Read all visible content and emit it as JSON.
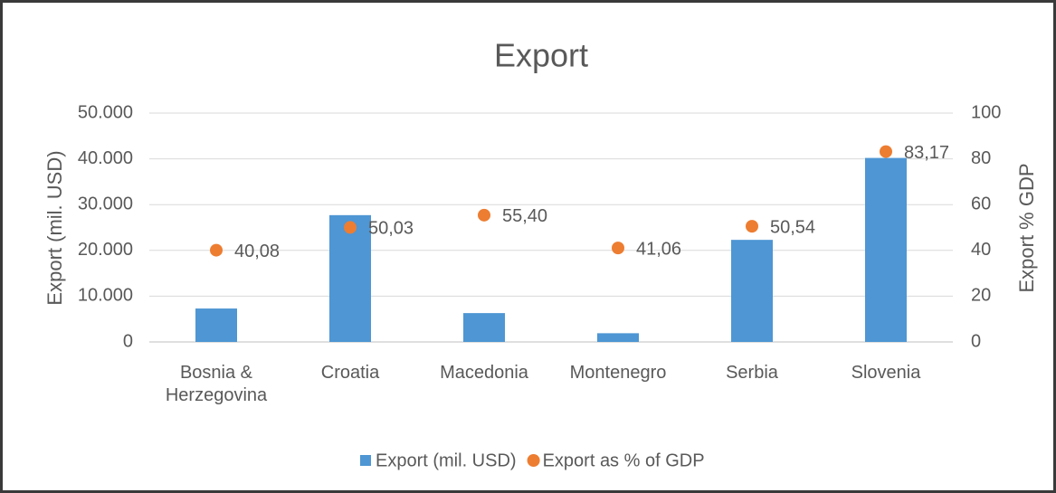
{
  "chart_data": {
    "type": "bar",
    "title": "Export",
    "y_label": "Export (mil. USD)",
    "y2_label": "Export % GDP",
    "categories": [
      "Bosnia & Herzegovina",
      "Croatia",
      "Macedonia",
      "Montenegro",
      "Serbia",
      "Slovenia"
    ],
    "series": [
      {
        "name": "Export (mil. USD)",
        "type": "bar",
        "color": "#4e96d4",
        "values": [
          7300,
          27700,
          6300,
          1900,
          22300,
          40200
        ]
      },
      {
        "name": "Export as % of GDP",
        "type": "scatter",
        "axis": "y2",
        "color": "#ed7d31",
        "values": [
          40.08,
          50.03,
          55.4,
          41.06,
          50.54,
          83.17
        ],
        "value_labels": [
          "40,08",
          "50,03",
          "55,40",
          "41,06",
          "50,54",
          "83,17"
        ]
      }
    ],
    "ylim": [
      0,
      50000
    ],
    "yticks": [
      0,
      {
        "value": 10000,
        "label": "10.000"
      },
      {
        "value": 20000,
        "label": "20.000"
      },
      {
        "value": 30000,
        "label": "30.000"
      },
      {
        "value": 40000,
        "label": "40.000"
      },
      {
        "value": 50000,
        "label": "50.000"
      }
    ],
    "y2lim": [
      0,
      100
    ],
    "y2ticks": [
      0,
      20,
      40,
      60,
      80,
      100
    ],
    "grid": true,
    "legend": "bottom"
  }
}
